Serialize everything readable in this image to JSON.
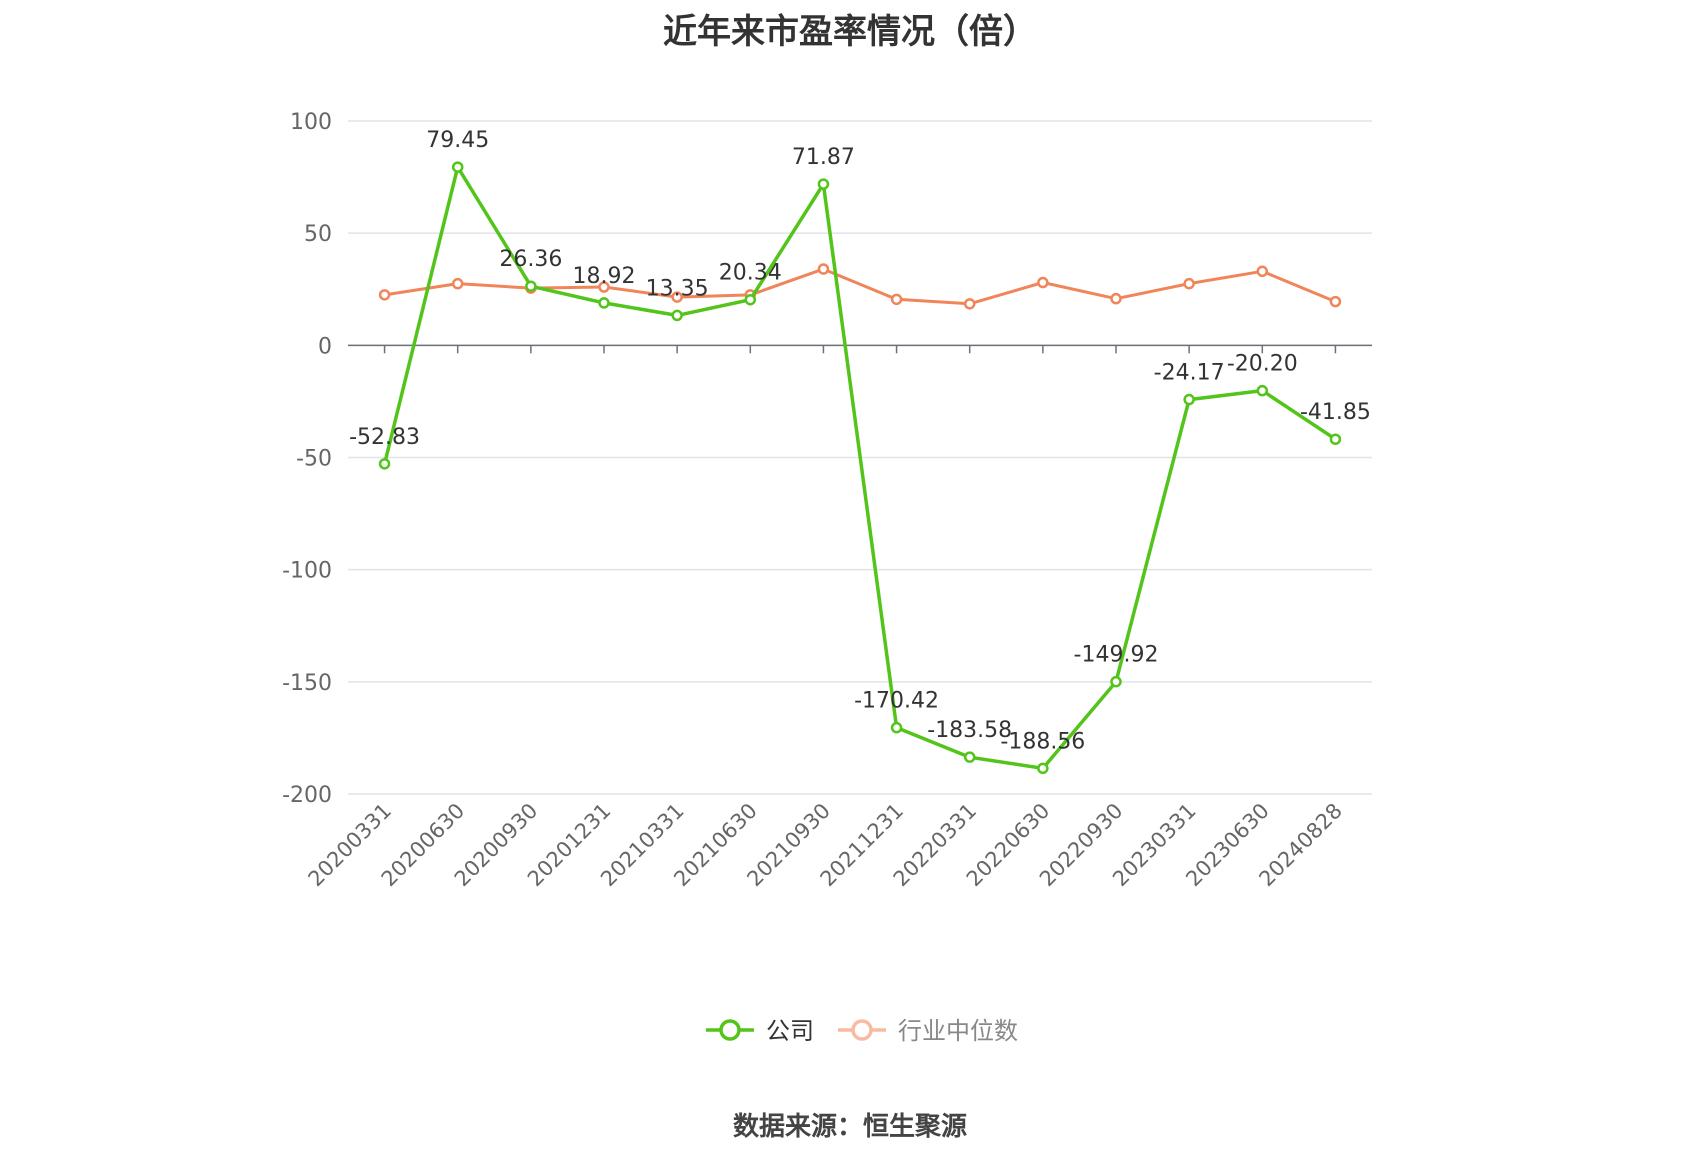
{
  "chart_data": {
    "type": "line",
    "title": "近年来市盈率情况（倍）",
    "categories": [
      "20200331",
      "20200630",
      "20200930",
      "20201231",
      "20210331",
      "20210630",
      "20210930",
      "20211231",
      "20220331",
      "20220630",
      "20220930",
      "20230331",
      "20230630",
      "20240828"
    ],
    "series": [
      {
        "name": "公司",
        "color": "#52c41a",
        "values": [
          -52.83,
          79.45,
          26.36,
          18.92,
          13.35,
          20.34,
          71.87,
          -170.42,
          -183.58,
          -188.56,
          -149.92,
          -24.17,
          -20.2,
          -41.85
        ],
        "labels": [
          "-52.83",
          "79.45",
          "26.36",
          "18.92",
          "13.35",
          "20.34",
          "71.87",
          "-170.42",
          "-183.58",
          "-188.56",
          "-149.92",
          "-24.17",
          "-20.20",
          "-41.85"
        ]
      },
      {
        "name": "行业中位数",
        "color": "#f0855a",
        "values": [
          22.5,
          27.5,
          25.5,
          26.0,
          21.5,
          22.5,
          34.0,
          20.5,
          18.5,
          28.0,
          20.8,
          27.5,
          33.0,
          19.5
        ]
      }
    ],
    "yticks": [
      "100",
      "50",
      "0",
      "-50",
      "-100",
      "-150",
      "-200"
    ],
    "ylim": [
      -200,
      100
    ],
    "grid": true,
    "legend_position": "bottom-center"
  },
  "source_text": "数据来源：恒生聚源"
}
